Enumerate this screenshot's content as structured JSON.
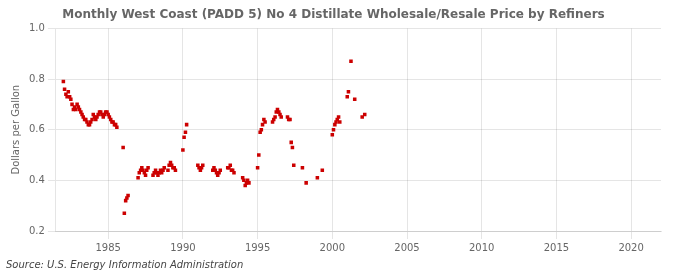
{
  "chart_data": {
    "type": "scatter",
    "title": "Monthly West Coast (PADD 5) No 4 Distillate Wholesale/Resale Price by Refiners",
    "y_label": "Dollars per Gallon",
    "annotations": [
      "Source: U.S. Energy Information Administration"
    ],
    "color": "#cc0000",
    "marker": "square",
    "grid": true,
    "xlim": [
      1981.5,
      2022
    ],
    "ylim": [
      0.2,
      1.0
    ],
    "xticks": [
      1985,
      1990,
      1995,
      2000,
      2005,
      2010,
      2015,
      2020
    ],
    "yticks": [
      0.2,
      0.4,
      0.6,
      0.8,
      {
        "value": 1.0,
        "label": "1.0"
      }
    ],
    "x": [
      1982.0,
      1982.08,
      1982.17,
      1982.25,
      1982.33,
      1982.42,
      1982.5,
      1982.58,
      1982.67,
      1982.75,
      1982.83,
      1982.92,
      1983.0,
      1983.08,
      1983.17,
      1983.25,
      1983.33,
      1983.42,
      1983.5,
      1983.58,
      1983.67,
      1983.75,
      1983.83,
      1983.92,
      1984.0,
      1984.08,
      1984.17,
      1984.25,
      1984.33,
      1984.42,
      1984.5,
      1984.58,
      1984.67,
      1984.75,
      1984.83,
      1984.92,
      1985.0,
      1985.08,
      1985.17,
      1985.25,
      1985.33,
      1985.42,
      1985.5,
      1985.58,
      1986.0,
      1986.08,
      1986.17,
      1986.25,
      1986.33,
      1987.0,
      1987.08,
      1987.17,
      1987.25,
      1987.33,
      1987.42,
      1987.5,
      1987.58,
      1987.67,
      1988.0,
      1988.08,
      1988.17,
      1988.25,
      1988.33,
      1988.42,
      1988.5,
      1988.58,
      1988.67,
      1988.75,
      1989.0,
      1989.08,
      1989.17,
      1989.25,
      1989.33,
      1989.42,
      1989.5,
      1990.0,
      1990.08,
      1990.17,
      1990.25,
      1991.0,
      1991.08,
      1991.17,
      1991.25,
      1991.33,
      1992.0,
      1992.08,
      1992.17,
      1992.25,
      1992.33,
      1992.42,
      1992.5,
      1993.0,
      1993.08,
      1993.17,
      1993.25,
      1993.33,
      1993.42,
      1994.0,
      1994.08,
      1994.17,
      1994.25,
      1994.33,
      1994.42,
      1995.0,
      1995.08,
      1995.17,
      1995.25,
      1995.33,
      1995.42,
      1995.5,
      1996.0,
      1996.08,
      1996.17,
      1996.25,
      1996.33,
      1996.42,
      1996.5,
      1996.58,
      1997.0,
      1997.08,
      1997.17,
      1997.25,
      1997.33,
      1997.42,
      1998.0,
      1998.25,
      1999.0,
      1999.33,
      2000.0,
      2000.08,
      2000.17,
      2000.25,
      2000.33,
      2000.42,
      2000.5,
      2001.0,
      2001.08,
      2001.25,
      2001.5,
      2002.0,
      2002.17
    ],
    "values": [
      0.79,
      0.76,
      0.74,
      0.73,
      0.75,
      0.73,
      0.72,
      0.7,
      0.68,
      0.69,
      0.68,
      0.7,
      0.69,
      0.68,
      0.67,
      0.66,
      0.65,
      0.64,
      0.64,
      0.63,
      0.62,
      0.62,
      0.63,
      0.64,
      0.66,
      0.65,
      0.64,
      0.65,
      0.66,
      0.67,
      0.67,
      0.66,
      0.65,
      0.66,
      0.67,
      0.67,
      0.66,
      0.65,
      0.64,
      0.63,
      0.63,
      0.62,
      0.62,
      0.61,
      0.53,
      0.27,
      0.32,
      0.33,
      0.34,
      0.41,
      0.43,
      0.44,
      0.45,
      0.44,
      0.43,
      0.42,
      0.44,
      0.45,
      0.42,
      0.43,
      0.44,
      0.43,
      0.42,
      0.43,
      0.44,
      0.43,
      0.44,
      0.45,
      0.44,
      0.46,
      0.47,
      0.46,
      0.45,
      0.45,
      0.44,
      0.52,
      0.57,
      0.59,
      0.62,
      0.46,
      0.45,
      0.44,
      0.45,
      0.46,
      0.44,
      0.45,
      0.44,
      0.43,
      0.42,
      0.43,
      0.44,
      0.45,
      0.45,
      0.46,
      0.44,
      0.44,
      0.43,
      0.41,
      0.4,
      0.38,
      0.39,
      0.4,
      0.39,
      0.45,
      0.5,
      0.59,
      0.6,
      0.62,
      0.64,
      0.63,
      0.63,
      0.64,
      0.65,
      0.67,
      0.68,
      0.67,
      0.66,
      0.65,
      0.65,
      0.64,
      0.64,
      0.55,
      0.53,
      0.46,
      0.45,
      0.39,
      0.41,
      0.44,
      0.58,
      0.6,
      0.62,
      0.63,
      0.64,
      0.65,
      0.63,
      0.73,
      0.75,
      0.87,
      0.72,
      0.65,
      0.66
    ]
  }
}
